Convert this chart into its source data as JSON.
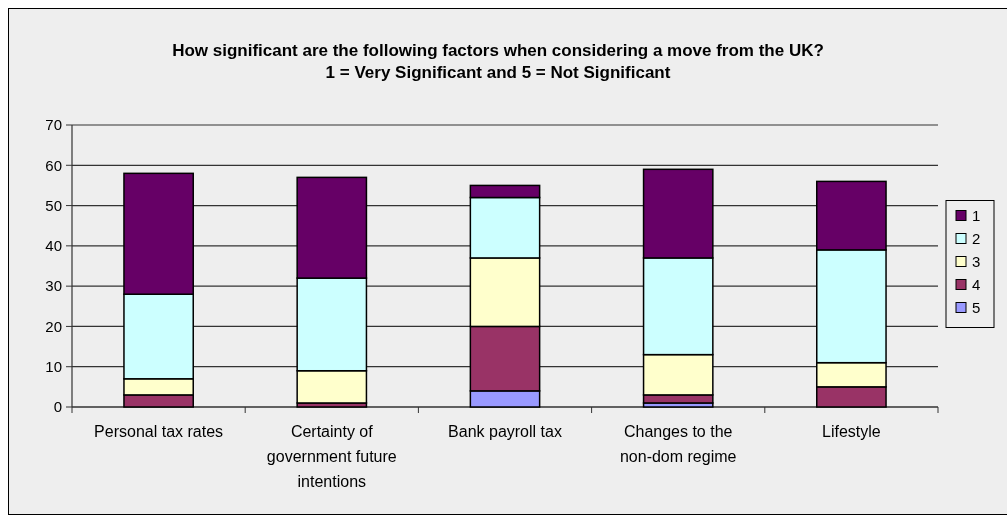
{
  "chart_data": {
    "type": "bar",
    "title": "How significant are the following factors when considering a move from the UK? 1 = Very Significant and 5 = Not Significant",
    "categories": [
      "Personal tax rates",
      "Certainty of government future intentions",
      "Bank payroll tax",
      "Changes to the non-dom regime",
      "Lifestyle"
    ],
    "stacked": true,
    "series": [
      {
        "name": "5",
        "color": "#9999ff",
        "values": [
          0,
          0,
          4,
          1,
          0
        ]
      },
      {
        "name": "4",
        "color": "#993366",
        "values": [
          3,
          1,
          16,
          2,
          5
        ]
      },
      {
        "name": "3",
        "color": "#ffffcc",
        "values": [
          4,
          8,
          17,
          10,
          6
        ]
      },
      {
        "name": "2",
        "color": "#ccffff",
        "values": [
          21,
          23,
          15,
          24,
          28
        ]
      },
      {
        "name": "1",
        "color": "#660066",
        "values": [
          30,
          25,
          3,
          22,
          17
        ]
      }
    ],
    "ylim": [
      0,
      70
    ],
    "yticks": [
      0,
      10,
      20,
      30,
      40,
      50,
      60,
      70
    ],
    "grid": "y",
    "legend": "right"
  }
}
